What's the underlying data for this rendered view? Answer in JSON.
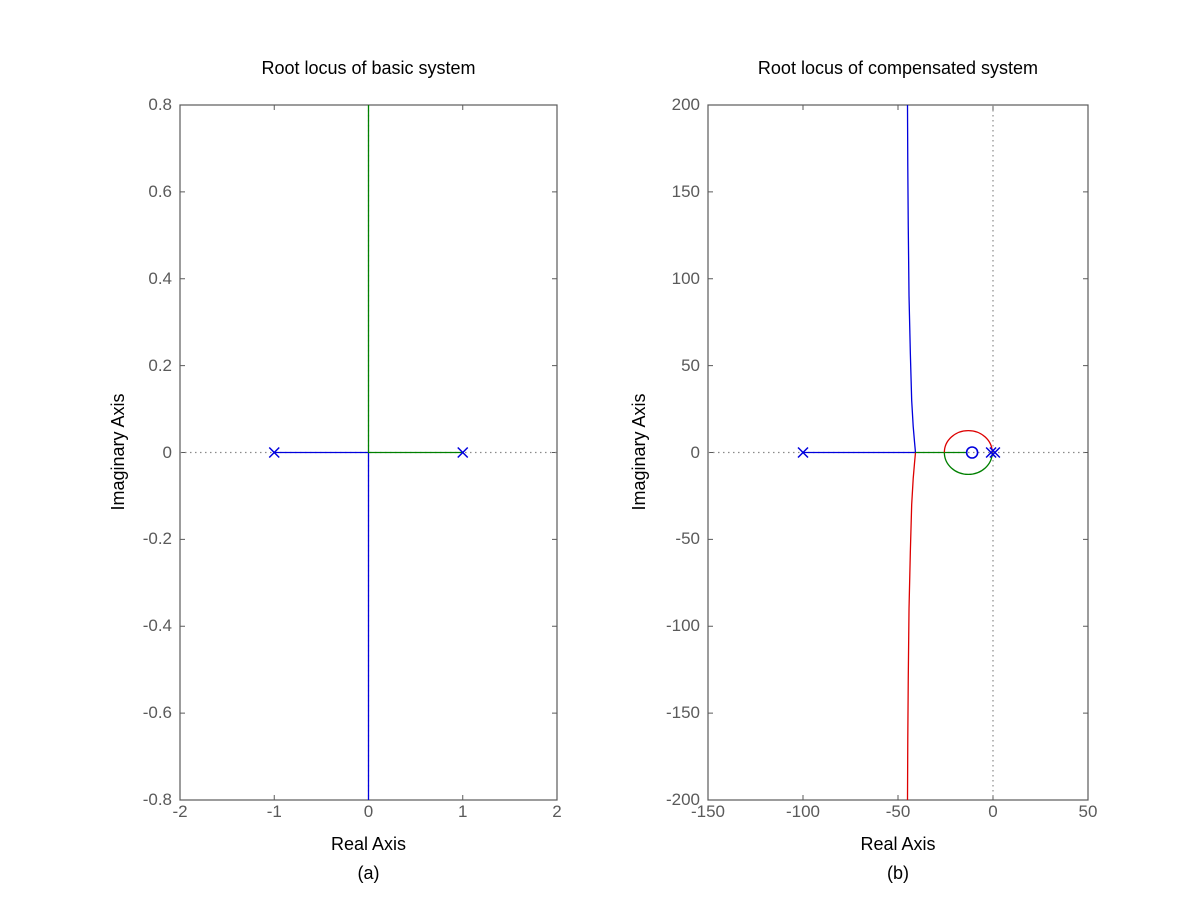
{
  "figure": {
    "background": "#ffffff",
    "axis_box_color": "#5a5a5a",
    "tick_label_color": "#5a5a5a",
    "text_color": "#000000",
    "reference_line_color": "#8a8a8a",
    "marker_color": "#0000dd"
  },
  "chart_data": [
    {
      "type": "line",
      "title": "Root locus of basic system",
      "xlabel": "Real Axis",
      "ylabel": "Imaginary Axis",
      "sublabel": "(a)",
      "xlim": [
        -2,
        2
      ],
      "ylim": [
        -0.8,
        0.8
      ],
      "xticks": [
        -2,
        -1,
        0,
        1,
        2
      ],
      "yticks": [
        0.8,
        0.6,
        0.4,
        0.2,
        0,
        -0.2,
        -0.4,
        -0.6,
        -0.8
      ],
      "grid": false,
      "ref_lines": {
        "horizontal_y": 0,
        "vertical_x": 0
      },
      "poles": [
        [
          -1,
          0
        ],
        [
          1,
          0
        ]
      ],
      "zeros": [],
      "branches": [
        {
          "name": "branch-from-pole-minus1",
          "color": "#0000dd",
          "points": [
            [
              -1,
              0
            ],
            [
              0,
              0
            ],
            [
              0,
              -0.8
            ]
          ]
        },
        {
          "name": "branch-from-pole-plus1",
          "color": "#008000",
          "points": [
            [
              1,
              0
            ],
            [
              0,
              0
            ],
            [
              0,
              0.8
            ]
          ]
        }
      ],
      "arcs": []
    },
    {
      "type": "line",
      "title": "Root locus of compensated system",
      "xlabel": "Real Axis",
      "ylabel": "Imaginary Axis",
      "sublabel": "(b)",
      "xlim": [
        -150,
        50
      ],
      "ylim": [
        -200,
        200
      ],
      "xticks": [
        -150,
        -100,
        -50,
        0,
        50
      ],
      "yticks": [
        200,
        150,
        100,
        50,
        0,
        -50,
        -100,
        -150,
        -200
      ],
      "grid": false,
      "ref_lines": {
        "horizontal_y": 0,
        "vertical_x": 0
      },
      "poles": [
        [
          -100,
          0
        ],
        [
          -1,
          0
        ],
        [
          1,
          0
        ]
      ],
      "zeros": [
        [
          -11,
          0
        ]
      ],
      "branches": [
        {
          "name": "branch-from-pole-minus100-upward",
          "color": "#0000dd",
          "points": [
            [
              -100,
              0
            ],
            [
              -40.8,
              0
            ],
            [
              -41.3,
              6
            ],
            [
              -42,
              15
            ],
            [
              -42.8,
              30
            ],
            [
              -43.5,
              57
            ],
            [
              -44.2,
              90
            ],
            [
              -44.6,
              130
            ],
            [
              -44.85,
              165
            ],
            [
              -45,
              200
            ]
          ]
        },
        {
          "name": "branch-downward",
          "color": "#dd0000",
          "points": [
            [
              -40.8,
              0
            ],
            [
              -41.3,
              -6
            ],
            [
              -42,
              -15
            ],
            [
              -42.8,
              -30
            ],
            [
              -43.5,
              -57
            ],
            [
              -44.2,
              -90
            ],
            [
              -44.6,
              -130
            ],
            [
              -44.85,
              -165
            ],
            [
              -45,
              -200
            ]
          ]
        },
        {
          "name": "branch-real-axis-to-zero",
          "color": "#008000",
          "points": [
            [
              -40.8,
              0
            ],
            [
              -14.2,
              0
            ]
          ]
        }
      ],
      "arcs": [
        {
          "name": "locus-circle-upper-half",
          "color": "#dd0000",
          "cx": -13,
          "cy": 0,
          "r": 12.6,
          "half": "upper"
        },
        {
          "name": "locus-circle-lower-half",
          "color": "#008000",
          "cx": -13,
          "cy": 0,
          "r": 12.6,
          "half": "lower"
        }
      ]
    }
  ]
}
